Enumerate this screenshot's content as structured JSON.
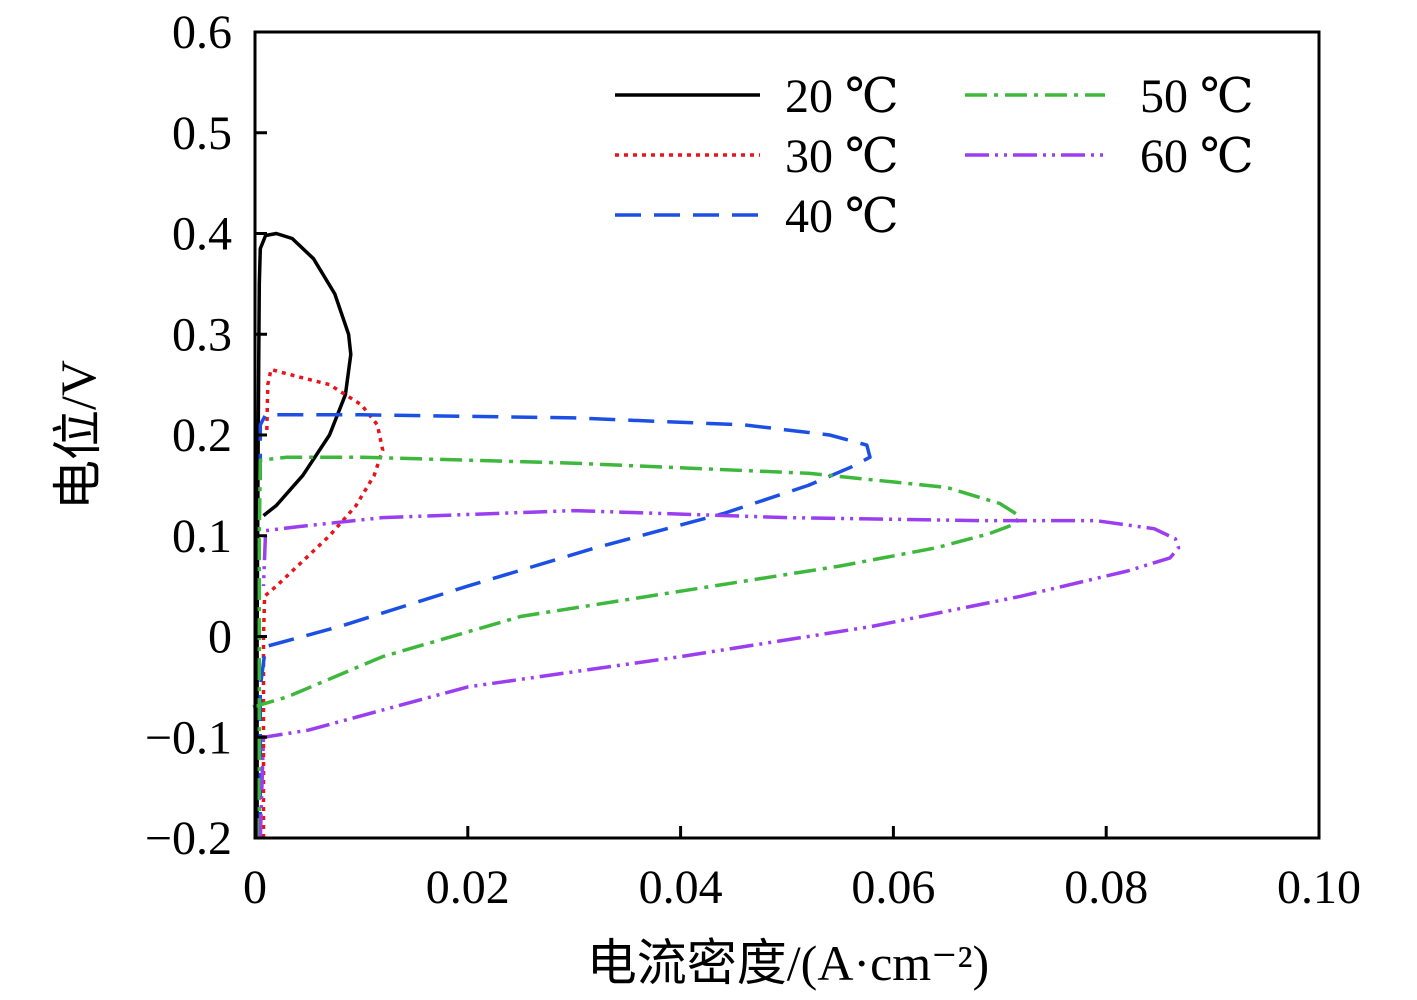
{
  "chart_data": {
    "type": "line",
    "title": "",
    "xlabel": "电流密度/(A·cm⁻²)",
    "ylabel": "电位/V",
    "xlim": [
      0,
      0.1
    ],
    "ylim": [
      -0.2,
      0.6
    ],
    "grid": false,
    "legend_position": "top-right",
    "x_ticks": [
      {
        "value": 0,
        "label": "0"
      },
      {
        "value": 0.02,
        "label": "0.02"
      },
      {
        "value": 0.04,
        "label": "0.04"
      },
      {
        "value": 0.06,
        "label": "0.06"
      },
      {
        "value": 0.08,
        "label": "0.08"
      },
      {
        "value": 0.1,
        "label": "0.10"
      }
    ],
    "y_ticks": [
      {
        "value": -0.2,
        "label": "−0.2"
      },
      {
        "value": -0.1,
        "label": "−0.1"
      },
      {
        "value": 0,
        "label": "0"
      },
      {
        "value": 0.1,
        "label": "0.1"
      },
      {
        "value": 0.2,
        "label": "0.2"
      },
      {
        "value": 0.3,
        "label": "0.3"
      },
      {
        "value": 0.4,
        "label": "0.4"
      },
      {
        "value": 0.5,
        "label": "0.5"
      },
      {
        "value": 0.6,
        "label": "0.6"
      }
    ],
    "series": [
      {
        "name": "20 ℃",
        "color": "#000000",
        "dash": "",
        "points": [
          [
            0.0002,
            -0.2
          ],
          [
            0.0002,
            0.0
          ],
          [
            0.0003,
            0.2
          ],
          [
            0.0004,
            0.35
          ],
          [
            0.0005,
            0.385
          ],
          [
            0.001,
            0.398
          ],
          [
            0.002,
            0.4
          ],
          [
            0.0035,
            0.395
          ],
          [
            0.0055,
            0.375
          ],
          [
            0.0075,
            0.34
          ],
          [
            0.0088,
            0.3
          ],
          [
            0.009,
            0.28
          ],
          [
            0.0085,
            0.24
          ],
          [
            0.007,
            0.2
          ],
          [
            0.0045,
            0.16
          ],
          [
            0.002,
            0.13
          ],
          [
            0.0008,
            0.12
          ]
        ]
      },
      {
        "name": "30 ℃",
        "color": "#e8141c",
        "dash": "4,5",
        "points": [
          [
            0.0008,
            -0.2
          ],
          [
            0.0008,
            0.0
          ],
          [
            0.0009,
            0.04
          ],
          [
            0.002,
            0.05
          ],
          [
            0.004,
            0.07
          ],
          [
            0.007,
            0.1
          ],
          [
            0.0095,
            0.13
          ],
          [
            0.0112,
            0.16
          ],
          [
            0.012,
            0.185
          ],
          [
            0.0115,
            0.21
          ],
          [
            0.01,
            0.23
          ],
          [
            0.007,
            0.25
          ],
          [
            0.004,
            0.258
          ],
          [
            0.0015,
            0.265
          ],
          [
            0.0012,
            0.25
          ],
          [
            0.0011,
            0.2
          ]
        ]
      },
      {
        "name": "40 ℃",
        "color": "#1c4fe4",
        "dash": "26,13",
        "points": [
          [
            0.0005,
            -0.2
          ],
          [
            0.0005,
            -0.05
          ],
          [
            0.001,
            -0.01
          ],
          [
            0.008,
            0.01
          ],
          [
            0.02,
            0.05
          ],
          [
            0.032,
            0.088
          ],
          [
            0.044,
            0.122
          ],
          [
            0.052,
            0.15
          ],
          [
            0.056,
            0.168
          ],
          [
            0.0578,
            0.178
          ],
          [
            0.0575,
            0.19
          ],
          [
            0.054,
            0.2
          ],
          [
            0.046,
            0.21
          ],
          [
            0.03,
            0.217
          ],
          [
            0.01,
            0.22
          ],
          [
            0.001,
            0.22
          ],
          [
            0.0005,
            0.21
          ],
          [
            0.0005,
            0.15
          ]
        ]
      },
      {
        "name": "50 ℃",
        "color": "#3db83d",
        "dash": "22,7,4,7",
        "points": [
          [
            -0.0002,
            -0.07
          ],
          [
            0.003,
            -0.06
          ],
          [
            0.012,
            -0.02
          ],
          [
            0.025,
            0.02
          ],
          [
            0.04,
            0.045
          ],
          [
            0.055,
            0.07
          ],
          [
            0.064,
            0.088
          ],
          [
            0.069,
            0.102
          ],
          [
            0.0715,
            0.112
          ],
          [
            0.0718,
            0.12
          ],
          [
            0.07,
            0.132
          ],
          [
            0.065,
            0.148
          ],
          [
            0.052,
            0.162
          ],
          [
            0.03,
            0.172
          ],
          [
            0.01,
            0.178
          ],
          [
            0.003,
            0.178
          ],
          [
            0.0005,
            0.175
          ],
          [
            0.0004,
            0.1
          ],
          [
            0.0004,
            -0.2
          ]
        ]
      },
      {
        "name": "60 ℃",
        "color": "#9b3ef0",
        "dash": "24,6,3,6,3,6",
        "points": [
          [
            0.0005,
            -0.2
          ],
          [
            0.0008,
            -0.1
          ],
          [
            0.005,
            -0.093
          ],
          [
            0.02,
            -0.05
          ],
          [
            0.04,
            -0.02
          ],
          [
            0.058,
            0.01
          ],
          [
            0.072,
            0.04
          ],
          [
            0.082,
            0.065
          ],
          [
            0.086,
            0.078
          ],
          [
            0.0868,
            0.088
          ],
          [
            0.0865,
            0.097
          ],
          [
            0.0845,
            0.107
          ],
          [
            0.079,
            0.115
          ],
          [
            0.068,
            0.115
          ],
          [
            0.05,
            0.118
          ],
          [
            0.03,
            0.125
          ],
          [
            0.012,
            0.118
          ],
          [
            0.004,
            0.109
          ],
          [
            0.001,
            0.105
          ],
          [
            0.0008,
            0.05
          ]
        ]
      }
    ]
  }
}
